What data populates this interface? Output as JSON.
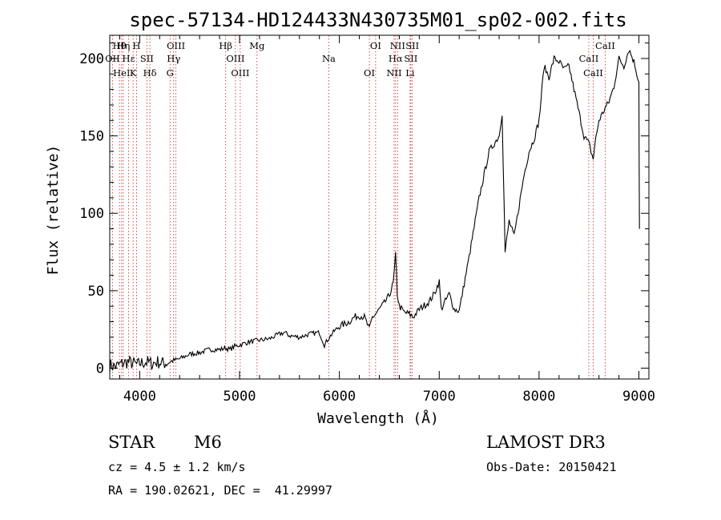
{
  "chart_data": {
    "type": "line",
    "title": "spec-57134-HD124433N430735M01_sp02-002.fits",
    "xlabel": "Wavelength (Å)",
    "ylabel": "Flux (relative)",
    "xlim": [
      3700,
      9100
    ],
    "ylim": [
      -7,
      215
    ],
    "xticks": [
      4000,
      5000,
      6000,
      7000,
      8000,
      9000
    ],
    "yticks": [
      0,
      50,
      100,
      150,
      200
    ],
    "grid": false,
    "series": [
      {
        "name": "flux",
        "x": [
          3700,
          3760,
          3820,
          3880,
          3940,
          3980,
          4000,
          4060,
          4120,
          4180,
          4240,
          4300,
          4340,
          4400,
          4500,
          4600,
          4700,
          4800,
          4861,
          4900,
          4950,
          5000,
          5100,
          5200,
          5300,
          5400,
          5450,
          5500,
          5600,
          5700,
          5800,
          5850,
          5900,
          5950,
          6000,
          6100,
          6150,
          6200,
          6250,
          6300,
          6330,
          6350,
          6400,
          6450,
          6500,
          6540,
          6563,
          6580,
          6600,
          6650,
          6700,
          6740,
          6800,
          6900,
          6950,
          7000,
          7020,
          7050,
          7100,
          7150,
          7200,
          7300,
          7400,
          7500,
          7600,
          7630,
          7660,
          7700,
          7750,
          7800,
          7850,
          7900,
          7950,
          8000,
          8050,
          8100,
          8150,
          8200,
          8250,
          8300,
          8350,
          8400,
          8450,
          8500,
          8542,
          8560,
          8600,
          8662,
          8700,
          8750,
          8800,
          8850,
          8900,
          8950,
          9000,
          9005
        ],
        "y": [
          2,
          1,
          3,
          4,
          3,
          2,
          3,
          4,
          3,
          4,
          3,
          4,
          5,
          6,
          9,
          10,
          12,
          12,
          13,
          12,
          14,
          15,
          17,
          18,
          19,
          22,
          23,
          21,
          20,
          22,
          23,
          15,
          20,
          24,
          27,
          30,
          33,
          34,
          33,
          25,
          33,
          34,
          38,
          42,
          47,
          55,
          73,
          48,
          40,
          36,
          35,
          33,
          38,
          43,
          48,
          56,
          38,
          42,
          48,
          38,
          37,
          72,
          110,
          140,
          150,
          165,
          75,
          95,
          85,
          105,
          125,
          140,
          148,
          160,
          195,
          188,
          200,
          198,
          193,
          195,
          180,
          165,
          150,
          145,
          135,
          145,
          160,
          168,
          172,
          182,
          200,
          195,
          206,
          198,
          185,
          90
        ]
      }
    ],
    "line_marks": [
      {
        "label": "Hθ",
        "x": 3797
      },
      {
        "label": "OII",
        "x": 3727
      },
      {
        "label": "HeI",
        "x": 3819
      },
      {
        "label": "Hη",
        "x": 3835
      },
      {
        "label": "Hε",
        "x": 3889
      },
      {
        "label": "K",
        "x": 3934
      },
      {
        "label": "H",
        "x": 3968
      },
      {
        "label": "SII",
        "x": 4072
      },
      {
        "label": "Hδ",
        "x": 4102
      },
      {
        "label": "OIII",
        "x": 4363
      },
      {
        "label": "Hγ",
        "x": 4340
      },
      {
        "label": "G",
        "x": 4304
      },
      {
        "label": "Hβ",
        "x": 4861
      },
      {
        "label": "OIII",
        "x": 4959
      },
      {
        "label": "OIII",
        "x": 5007
      },
      {
        "label": "Mg",
        "x": 5175
      },
      {
        "label": "Na",
        "x": 5894
      },
      {
        "label": "OI",
        "x": 6300
      },
      {
        "label": "OI",
        "x": 6363
      },
      {
        "label": "Hα",
        "x": 6563
      },
      {
        "label": "NII",
        "x": 6548
      },
      {
        "label": "NII",
        "x": 6583
      },
      {
        "label": "SII",
        "x": 6716
      },
      {
        "label": "Li",
        "x": 6708
      },
      {
        "label": "SII",
        "x": 6731
      },
      {
        "label": "CaII",
        "x": 8498
      },
      {
        "label": "CaII",
        "x": 8542
      },
      {
        "label": "CaII",
        "x": 8662
      }
    ]
  },
  "info": {
    "object_class": "STAR",
    "subclass": "M6",
    "survey": "LAMOST DR3",
    "cz": "cz = 4.5 ± 1.2 km/s",
    "obs_date": "Obs-Date: 20150421",
    "coords": "RA = 190.02621, DEC =  41.29997"
  },
  "colors": {
    "spectrum": "#000000",
    "line_marks": "#cc2222",
    "background": "#ffffff"
  }
}
